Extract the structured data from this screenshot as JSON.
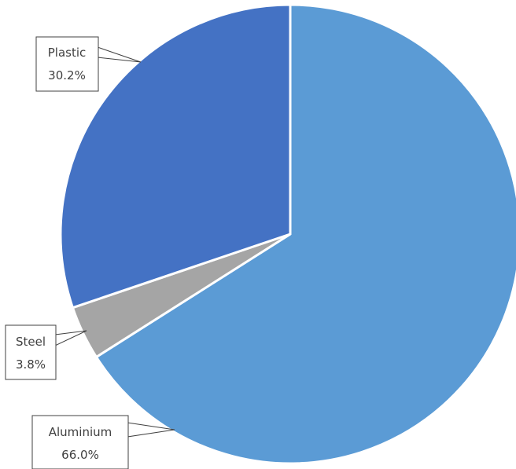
{
  "chart_data": {
    "type": "pie",
    "title": "",
    "slices": [
      {
        "label": "Aluminium",
        "value": 66.0,
        "display": "66.0%",
        "color": "#5b9bd5"
      },
      {
        "label": "Steel",
        "value": 3.8,
        "display": "3.8%",
        "color": "#a5a5a5"
      },
      {
        "label": "Plastic",
        "value": 30.2,
        "display": "30.2%",
        "color": "#4472c4"
      }
    ],
    "start_angle_deg": 0,
    "direction": "clockwise",
    "legend": "none",
    "data_labels": "callout"
  }
}
